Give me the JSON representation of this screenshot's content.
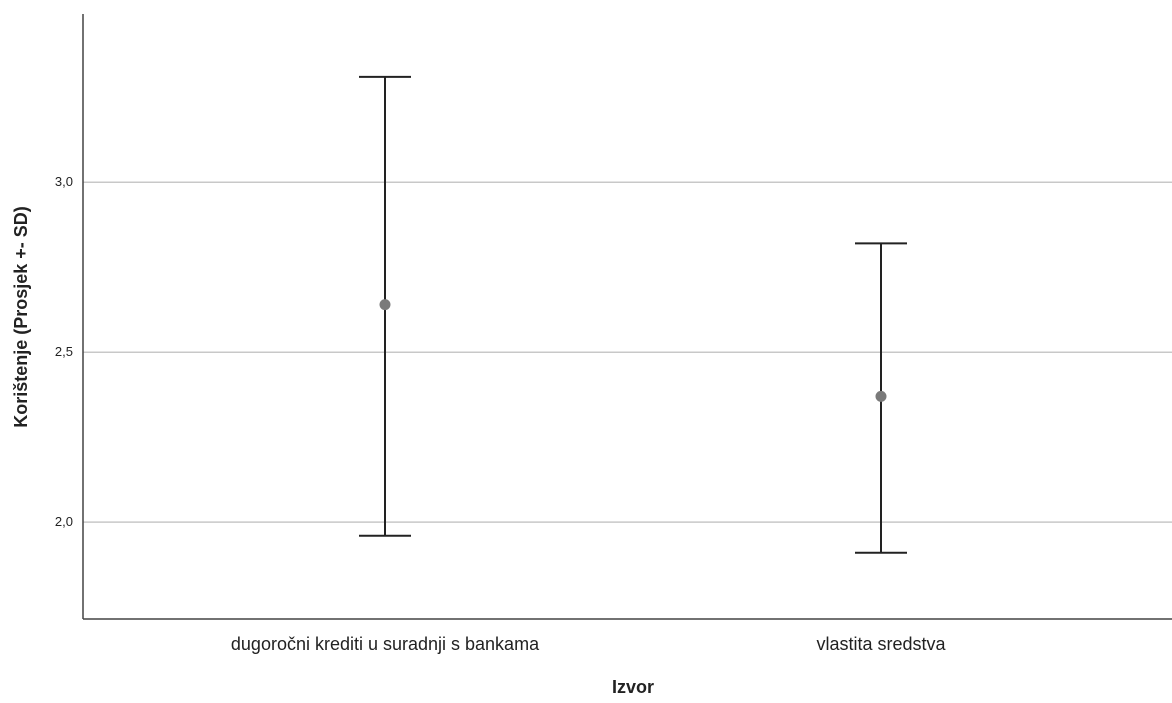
{
  "chart_data": {
    "type": "scatter",
    "title": "",
    "xlabel": "Izvor",
    "ylabel": "Korištenje (Prosjek +- SD)",
    "categories": [
      "dugoročni krediti u suradnji s bankama",
      "vlastita sredstva"
    ],
    "series": [
      {
        "means": [
          2.64,
          2.37
        ],
        "lower": [
          1.96,
          1.91
        ],
        "upper": [
          3.31,
          2.82
        ]
      }
    ],
    "yticks": [
      2.0,
      2.5,
      3.0
    ],
    "ytick_labels": [
      "2,0",
      "2,5",
      "3,0"
    ],
    "ylim": [
      1.715,
      3.495
    ],
    "grid": true,
    "colors": {
      "marker": "#7a7a7a",
      "errorbar": "#222222",
      "grid": "#c8c8c8",
      "axis": "#444444"
    }
  }
}
